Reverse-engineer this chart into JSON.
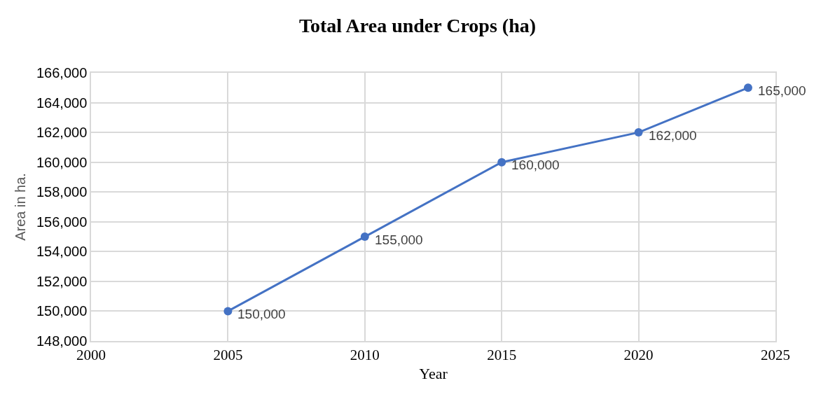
{
  "chart_data": {
    "type": "line",
    "title": "Total Area under Crops (ha)",
    "xlabel": "Year",
    "ylabel": "Area in ha.",
    "x": [
      2005,
      2010,
      2015,
      2020,
      2024
    ],
    "series": [
      {
        "color": "#4472c4",
        "values": [
          150000,
          155000,
          160000,
          162000,
          165000
        ],
        "value_labels": [
          "150,000",
          "155,000",
          "160,000",
          "162,000",
          "165,000"
        ]
      }
    ],
    "xlim": [
      2000,
      2025
    ],
    "xticks": [
      2000,
      2005,
      2010,
      2015,
      2020,
      2025
    ],
    "ylim": [
      148000,
      166000
    ],
    "yticks": [
      {
        "value": 148000,
        "label": "148,000"
      },
      {
        "value": 150000,
        "label": "150,000"
      },
      {
        "value": 152000,
        "label": "152,000"
      },
      {
        "value": 154000,
        "label": "154,000"
      },
      {
        "value": 156000,
        "label": "156,000"
      },
      {
        "value": 158000,
        "label": "158,000"
      },
      {
        "value": 160000,
        "label": "160,000"
      },
      {
        "value": 162000,
        "label": "162,000"
      },
      {
        "value": 164000,
        "label": "164,000"
      },
      {
        "value": 166000,
        "label": "166,000"
      }
    ],
    "grid": true,
    "marker": "circle",
    "line_style": "solid"
  }
}
